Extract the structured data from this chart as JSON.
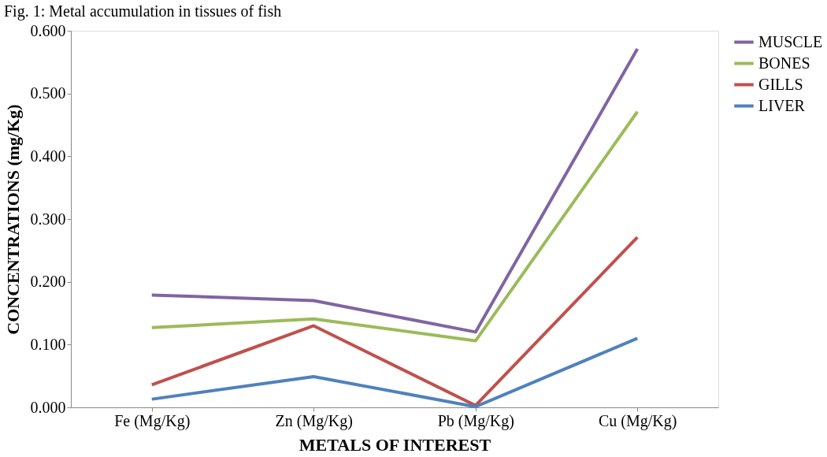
{
  "chart_data": {
    "type": "line",
    "title": "Fig. 1: Metal accumulation in tissues of fish",
    "xlabel": "METALS OF INTEREST",
    "ylabel": "CONCENTRATIONS (mg/Kg)",
    "categories": [
      "Fe (Mg/Kg)",
      "Zn (Mg/Kg)",
      "Pb (Mg/Kg)",
      "Cu (Mg/Kg)"
    ],
    "series": [
      {
        "name": "MUSCLE",
        "color": "#8064a2",
        "values": [
          0.179,
          0.17,
          0.12,
          0.571
        ]
      },
      {
        "name": "BONES",
        "color": "#9bbb59",
        "values": [
          0.127,
          0.141,
          0.106,
          0.471
        ]
      },
      {
        "name": "GILLS",
        "color": "#c0504d",
        "values": [
          0.036,
          0.13,
          0.003,
          0.271
        ]
      },
      {
        "name": "LIVER",
        "color": "#4f81bd",
        "values": [
          0.013,
          0.049,
          0.001,
          0.11
        ]
      }
    ],
    "ylim": [
      0,
      0.6
    ],
    "yticks": [
      {
        "value": 0,
        "label": "0.000"
      },
      {
        "value": 0.1,
        "label": "0.100"
      },
      {
        "value": 0.2,
        "label": "0.200"
      },
      {
        "value": 0.3,
        "label": "0.300"
      },
      {
        "value": 0.4,
        "label": "0.400"
      },
      {
        "value": 0.5,
        "label": "0.500"
      },
      {
        "value": 0.6,
        "label": "0.600"
      }
    ],
    "grid": false,
    "legend": "right",
    "marker": "none",
    "line_style": "solid"
  }
}
